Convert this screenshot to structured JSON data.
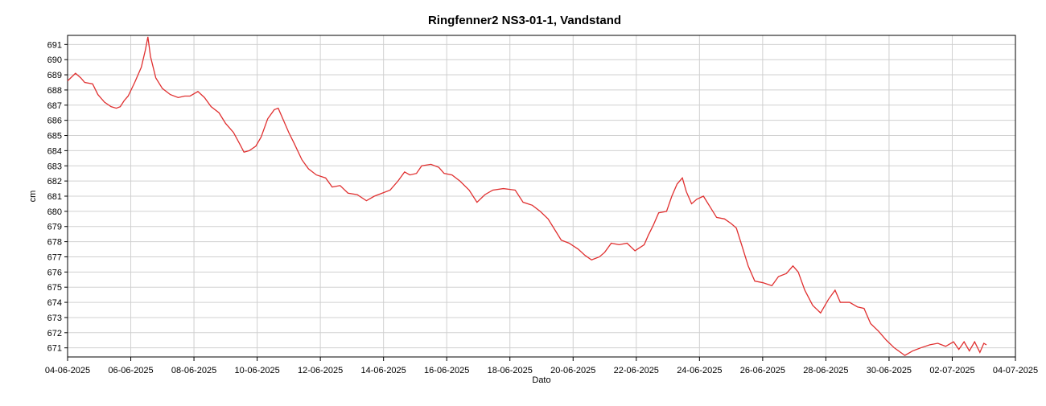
{
  "chart_data": {
    "type": "line",
    "title": "Ringfenner2 NS3-01-1, Vandstand",
    "x_label": "Dato",
    "y_label": "cm",
    "grid": true,
    "xlim": [
      "2025-06-04",
      "2025-07-04"
    ],
    "ylim": [
      670.4,
      691.6
    ],
    "xticks": [
      {
        "value": "2025-06-04",
        "label": "04-06-2025"
      },
      {
        "value": "2025-06-06",
        "label": "06-06-2025"
      },
      {
        "value": "2025-06-08",
        "label": "08-06-2025"
      },
      {
        "value": "2025-06-10",
        "label": "10-06-2025"
      },
      {
        "value": "2025-06-12",
        "label": "12-06-2025"
      },
      {
        "value": "2025-06-14",
        "label": "14-06-2025"
      },
      {
        "value": "2025-06-16",
        "label": "16-06-2025"
      },
      {
        "value": "2025-06-18",
        "label": "18-06-2025"
      },
      {
        "value": "2025-06-20",
        "label": "20-06-2025"
      },
      {
        "value": "2025-06-22",
        "label": "22-06-2025"
      },
      {
        "value": "2025-06-24",
        "label": "24-06-2025"
      },
      {
        "value": "2025-06-26",
        "label": "26-06-2025"
      },
      {
        "value": "2025-06-28",
        "label": "28-06-2025"
      },
      {
        "value": "2025-06-30",
        "label": "30-06-2025"
      },
      {
        "value": "2025-07-02",
        "label": "02-07-2025"
      },
      {
        "value": "2025-07-04",
        "label": "04-07-2025"
      }
    ],
    "yticks": [
      671,
      672,
      673,
      674,
      675,
      676,
      677,
      678,
      679,
      680,
      681,
      682,
      683,
      684,
      685,
      686,
      687,
      688,
      689,
      690,
      691
    ],
    "x": [
      "2025-06-04T00:00",
      "2025-06-04T06:00",
      "2025-06-04T10:00",
      "2025-06-04T13:00",
      "2025-06-04T19:00",
      "2025-06-04T23:00",
      "2025-06-05T04:00",
      "2025-06-05T09:00",
      "2025-06-05T13:00",
      "2025-06-05T16:00",
      "2025-06-05T19:00",
      "2025-06-05T22:00",
      "2025-06-06T03:00",
      "2025-06-06T08:00",
      "2025-06-06T11:00",
      "2025-06-06T13:00",
      "2025-06-06T15:00",
      "2025-06-06T19:00",
      "2025-06-07T00:00",
      "2025-06-07T06:00",
      "2025-06-07T12:00",
      "2025-06-07T17:00",
      "2025-06-07T21:00",
      "2025-06-08T03:00",
      "2025-06-08T08:00",
      "2025-06-08T13:00",
      "2025-06-08T19:00",
      "2025-06-09T00:00",
      "2025-06-09T06:00",
      "2025-06-09T11:00",
      "2025-06-09T14:00",
      "2025-06-09T18:00",
      "2025-06-09T23:00",
      "2025-06-10T03:00",
      "2025-06-10T08:00",
      "2025-06-10T13:00",
      "2025-06-10T16:00",
      "2025-06-10T19:00",
      "2025-06-11T00:00",
      "2025-06-11T04:00",
      "2025-06-11T10:00",
      "2025-06-11T15:00",
      "2025-06-11T21:00",
      "2025-06-12T04:00",
      "2025-06-12T09:00",
      "2025-06-12T15:00",
      "2025-06-12T21:00",
      "2025-06-13T04:00",
      "2025-06-13T11:00",
      "2025-06-13T17:00",
      "2025-06-13T23:00",
      "2025-06-14T05:00",
      "2025-06-14T11:00",
      "2025-06-14T16:00",
      "2025-06-14T20:00",
      "2025-06-15T01:00",
      "2025-06-15T05:00",
      "2025-06-15T12:00",
      "2025-06-15T18:00",
      "2025-06-15T22:00",
      "2025-06-16T04:00",
      "2025-06-16T10:00",
      "2025-06-16T17:00",
      "2025-06-16T23:00",
      "2025-06-17T05:00",
      "2025-06-17T11:00",
      "2025-06-17T19:00",
      "2025-06-18T04:00",
      "2025-06-18T10:00",
      "2025-06-18T17:00",
      "2025-06-18T23:00",
      "2025-06-19T05:00",
      "2025-06-19T10:00",
      "2025-06-19T15:00",
      "2025-06-19T21:00",
      "2025-06-20T04:00",
      "2025-06-20T09:00",
      "2025-06-20T14:00",
      "2025-06-20T20:00",
      "2025-06-21T00:00",
      "2025-06-21T05:00",
      "2025-06-21T11:00",
      "2025-06-21T17:00",
      "2025-06-21T23:00",
      "2025-06-22T06:00",
      "2025-06-22T09:00",
      "2025-06-22T13:00",
      "2025-06-22T17:00",
      "2025-06-22T23:00",
      "2025-06-23T03:00",
      "2025-06-23T07:00",
      "2025-06-23T11:00",
      "2025-06-23T14:00",
      "2025-06-23T18:00",
      "2025-06-23T22:00",
      "2025-06-24T03:00",
      "2025-06-24T08:00",
      "2025-06-24T13:00",
      "2025-06-24T19:00",
      "2025-06-25T00:00",
      "2025-06-25T04:00",
      "2025-06-25T08:00",
      "2025-06-25T13:00",
      "2025-06-25T18:00",
      "2025-06-26T00:00",
      "2025-06-26T07:00",
      "2025-06-26T12:00",
      "2025-06-26T18:00",
      "2025-06-26T23:00",
      "2025-06-27T03:00",
      "2025-06-27T08:00",
      "2025-06-27T14:00",
      "2025-06-27T20:00",
      "2025-06-28T02:00",
      "2025-06-28T07:00",
      "2025-06-28T11:00",
      "2025-06-28T18:00",
      "2025-06-29T00:00",
      "2025-06-29T05:00",
      "2025-06-29T10:00",
      "2025-06-29T16:00",
      "2025-06-29T22:00",
      "2025-06-30T04:00",
      "2025-06-30T12:00",
      "2025-06-30T18:00",
      "2025-07-01T00:00",
      "2025-07-01T07:00",
      "2025-07-01T13:00",
      "2025-07-01T19:00",
      "2025-07-02T01:00",
      "2025-07-02T05:00",
      "2025-07-02T09:00",
      "2025-07-02T13:00",
      "2025-07-02T17:00",
      "2025-07-02T21:00",
      "2025-07-03T00:00",
      "2025-07-03T02:00"
    ],
    "series": [
      {
        "name": "Vandstand",
        "color": "#e03030",
        "values": [
          688.6,
          689.1,
          688.8,
          688.5,
          688.4,
          687.7,
          687.2,
          686.9,
          686.8,
          686.9,
          687.3,
          687.6,
          688.5,
          689.5,
          690.6,
          691.5,
          690.2,
          688.8,
          688.1,
          687.7,
          687.5,
          687.6,
          687.6,
          687.9,
          687.5,
          686.9,
          686.5,
          685.8,
          685.2,
          684.4,
          683.9,
          684.0,
          684.3,
          684.9,
          686.1,
          686.7,
          686.8,
          686.2,
          685.2,
          684.5,
          683.4,
          682.8,
          682.4,
          682.2,
          681.6,
          681.7,
          681.2,
          681.1,
          680.7,
          681.0,
          681.2,
          681.4,
          682.0,
          682.6,
          682.4,
          682.5,
          683.0,
          683.1,
          682.9,
          682.5,
          682.4,
          682.0,
          681.4,
          680.6,
          681.1,
          681.4,
          681.5,
          681.4,
          680.6,
          680.4,
          680.0,
          679.5,
          678.8,
          678.1,
          677.9,
          677.5,
          677.1,
          676.8,
          677.0,
          677.3,
          677.9,
          677.8,
          677.9,
          677.4,
          677.8,
          678.4,
          679.1,
          679.9,
          680.0,
          681.0,
          681.8,
          682.2,
          681.3,
          680.5,
          680.8,
          681.0,
          680.3,
          679.6,
          679.5,
          679.2,
          678.9,
          677.8,
          676.4,
          675.4,
          675.3,
          675.1,
          675.7,
          675.9,
          676.4,
          676.0,
          674.8,
          673.8,
          673.3,
          674.2,
          674.8,
          674.0,
          674.0,
          673.7,
          673.6,
          672.6,
          672.1,
          671.5,
          671.0,
          670.5,
          670.8,
          671.0,
          671.2,
          671.3,
          671.1,
          671.4,
          670.9,
          671.4,
          670.8,
          671.4,
          670.7,
          671.3,
          671.2
        ]
      }
    ]
  }
}
